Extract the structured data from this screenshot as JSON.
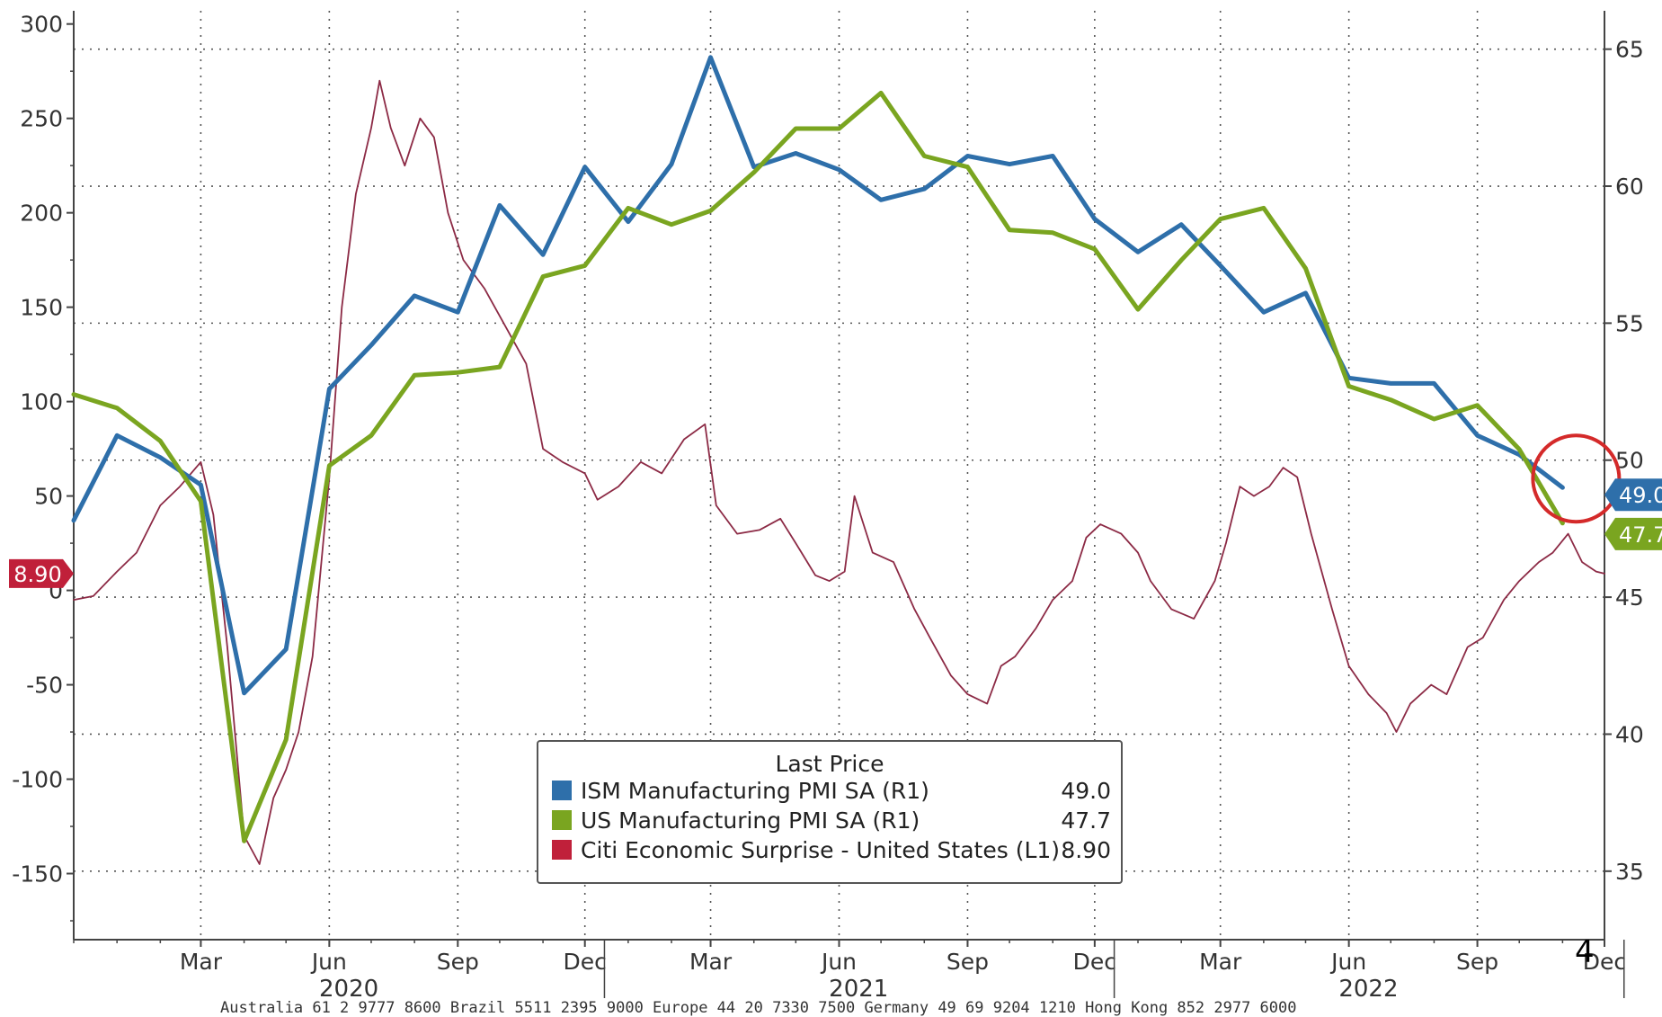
{
  "chart_data": {
    "type": "line",
    "x_range": [
      "2019-12-01",
      "2022-12-01"
    ],
    "left_axis": {
      "ylim": [
        -185,
        307
      ],
      "ticks": [
        300,
        250,
        200,
        150,
        100,
        50,
        0,
        -50,
        -100,
        -150
      ]
    },
    "right_axis": {
      "ylim": [
        32.5,
        66.4
      ],
      "ticks": [
        65,
        60,
        55,
        50,
        45,
        40,
        35
      ]
    },
    "x_month_ticks": [
      {
        "date": "2020-03-01",
        "label": "Mar"
      },
      {
        "date": "2020-06-01",
        "label": "Jun"
      },
      {
        "date": "2020-09-01",
        "label": "Sep"
      },
      {
        "date": "2020-12-01",
        "label": "Dec"
      },
      {
        "date": "2021-03-01",
        "label": "Mar"
      },
      {
        "date": "2021-06-01",
        "label": "Jun"
      },
      {
        "date": "2021-09-01",
        "label": "Sep"
      },
      {
        "date": "2021-12-01",
        "label": "Dec"
      },
      {
        "date": "2022-03-01",
        "label": "Mar"
      },
      {
        "date": "2022-06-01",
        "label": "Jun"
      },
      {
        "date": "2022-09-01",
        "label": "Sep"
      },
      {
        "date": "2022-12-01",
        "label": "Dec"
      }
    ],
    "x_year_labels": [
      {
        "date": "2020-06-15",
        "label": "2020"
      },
      {
        "date": "2021-06-15",
        "label": "2021"
      },
      {
        "date": "2022-06-15",
        "label": "2022"
      }
    ],
    "year_dividers": [
      "2020-12-15",
      "2021-12-15",
      "2022-12-15"
    ],
    "grid": true,
    "series": [
      {
        "name": "ISM Manufacturing PMI SA  (R1)",
        "axis": "right",
        "color": "#2e6faa",
        "last_value": "49.0",
        "points": [
          [
            "2019-12-01",
            47.8
          ],
          [
            "2020-01-01",
            50.9
          ],
          [
            "2020-02-01",
            50.1
          ],
          [
            "2020-03-01",
            49.1
          ],
          [
            "2020-04-01",
            41.5
          ],
          [
            "2020-05-01",
            43.1
          ],
          [
            "2020-06-01",
            52.6
          ],
          [
            "2020-07-01",
            54.2
          ],
          [
            "2020-08-01",
            56.0
          ],
          [
            "2020-09-01",
            55.4
          ],
          [
            "2020-10-01",
            59.3
          ],
          [
            "2020-11-01",
            57.5
          ],
          [
            "2020-12-01",
            60.7
          ],
          [
            "2021-01-01",
            58.7
          ],
          [
            "2021-02-01",
            60.8
          ],
          [
            "2021-03-01",
            64.7
          ],
          [
            "2021-04-01",
            60.7
          ],
          [
            "2021-05-01",
            61.2
          ],
          [
            "2021-06-01",
            60.6
          ],
          [
            "2021-07-01",
            59.5
          ],
          [
            "2021-08-01",
            59.9
          ],
          [
            "2021-09-01",
            61.1
          ],
          [
            "2021-10-01",
            60.8
          ],
          [
            "2021-11-01",
            61.1
          ],
          [
            "2021-12-01",
            58.8
          ],
          [
            "2022-01-01",
            57.6
          ],
          [
            "2022-02-01",
            58.6
          ],
          [
            "2022-03-01",
            57.1
          ],
          [
            "2022-04-01",
            55.4
          ],
          [
            "2022-05-01",
            56.1
          ],
          [
            "2022-06-01",
            53.0
          ],
          [
            "2022-07-01",
            52.8
          ],
          [
            "2022-08-01",
            52.8
          ],
          [
            "2022-09-01",
            50.9
          ],
          [
            "2022-10-01",
            50.2
          ],
          [
            "2022-11-01",
            49.0
          ]
        ]
      },
      {
        "name": "US Manufacturing PMI SA  (R1)",
        "axis": "right",
        "color": "#7aa520",
        "last_value": "47.7",
        "points": [
          [
            "2019-12-01",
            52.4
          ],
          [
            "2020-01-01",
            51.9
          ],
          [
            "2020-02-01",
            50.7
          ],
          [
            "2020-03-01",
            48.5
          ],
          [
            "2020-04-01",
            36.1
          ],
          [
            "2020-05-01",
            39.8
          ],
          [
            "2020-06-01",
            49.8
          ],
          [
            "2020-07-01",
            50.9
          ],
          [
            "2020-08-01",
            53.1
          ],
          [
            "2020-09-01",
            53.2
          ],
          [
            "2020-10-01",
            53.4
          ],
          [
            "2020-11-01",
            56.7
          ],
          [
            "2020-12-01",
            57.1
          ],
          [
            "2021-01-01",
            59.2
          ],
          [
            "2021-02-01",
            58.6
          ],
          [
            "2021-03-01",
            59.1
          ],
          [
            "2021-04-01",
            60.5
          ],
          [
            "2021-05-01",
            62.1
          ],
          [
            "2021-06-01",
            62.1
          ],
          [
            "2021-07-01",
            63.4
          ],
          [
            "2021-08-01",
            61.1
          ],
          [
            "2021-09-01",
            60.7
          ],
          [
            "2021-10-01",
            58.4
          ],
          [
            "2021-11-01",
            58.3
          ],
          [
            "2021-12-01",
            57.7
          ],
          [
            "2022-01-01",
            55.5
          ],
          [
            "2022-02-01",
            57.3
          ],
          [
            "2022-03-01",
            58.8
          ],
          [
            "2022-04-01",
            59.2
          ],
          [
            "2022-05-01",
            57.0
          ],
          [
            "2022-06-01",
            52.7
          ],
          [
            "2022-07-01",
            52.2
          ],
          [
            "2022-08-01",
            51.5
          ],
          [
            "2022-09-01",
            52.0
          ],
          [
            "2022-10-01",
            50.4
          ],
          [
            "2022-11-01",
            47.7
          ]
        ]
      },
      {
        "name": "Citi Economic Surprise - United States  (L1)",
        "axis": "left",
        "color": "#8c2a45",
        "last_value": "8.90",
        "points": [
          [
            "2019-12-01",
            -5
          ],
          [
            "2019-12-15",
            -3
          ],
          [
            "2020-01-01",
            10
          ],
          [
            "2020-01-15",
            20
          ],
          [
            "2020-02-01",
            45
          ],
          [
            "2020-02-15",
            55
          ],
          [
            "2020-03-01",
            68
          ],
          [
            "2020-03-10",
            40
          ],
          [
            "2020-03-20",
            -30
          ],
          [
            "2020-04-01",
            -130
          ],
          [
            "2020-04-12",
            -145
          ],
          [
            "2020-04-22",
            -110
          ],
          [
            "2020-05-01",
            -95
          ],
          [
            "2020-05-10",
            -75
          ],
          [
            "2020-05-20",
            -35
          ],
          [
            "2020-06-01",
            60
          ],
          [
            "2020-06-10",
            150
          ],
          [
            "2020-06-20",
            210
          ],
          [
            "2020-07-01",
            245
          ],
          [
            "2020-07-07",
            270
          ],
          [
            "2020-07-15",
            245
          ],
          [
            "2020-07-25",
            225
          ],
          [
            "2020-08-05",
            250
          ],
          [
            "2020-08-15",
            240
          ],
          [
            "2020-08-25",
            200
          ],
          [
            "2020-09-05",
            175
          ],
          [
            "2020-09-20",
            160
          ],
          [
            "2020-10-05",
            140
          ],
          [
            "2020-10-20",
            120
          ],
          [
            "2020-11-01",
            75
          ],
          [
            "2020-11-15",
            68
          ],
          [
            "2020-12-01",
            62
          ],
          [
            "2020-12-10",
            48
          ],
          [
            "2020-12-25",
            55
          ],
          [
            "2021-01-10",
            68
          ],
          [
            "2021-01-25",
            62
          ],
          [
            "2021-02-10",
            80
          ],
          [
            "2021-02-25",
            88
          ],
          [
            "2021-03-05",
            45
          ],
          [
            "2021-03-20",
            30
          ],
          [
            "2021-04-05",
            32
          ],
          [
            "2021-04-20",
            38
          ],
          [
            "2021-05-01",
            25
          ],
          [
            "2021-05-15",
            8
          ],
          [
            "2021-05-25",
            5
          ],
          [
            "2021-06-05",
            10
          ],
          [
            "2021-06-12",
            50
          ],
          [
            "2021-06-25",
            20
          ],
          [
            "2021-07-10",
            15
          ],
          [
            "2021-07-25",
            -10
          ],
          [
            "2021-08-05",
            -25
          ],
          [
            "2021-08-20",
            -45
          ],
          [
            "2021-09-01",
            -55
          ],
          [
            "2021-09-15",
            -60
          ],
          [
            "2021-09-25",
            -40
          ],
          [
            "2021-10-05",
            -35
          ],
          [
            "2021-10-20",
            -20
          ],
          [
            "2021-11-01",
            -5
          ],
          [
            "2021-11-15",
            5
          ],
          [
            "2021-11-25",
            28
          ],
          [
            "2021-12-05",
            35
          ],
          [
            "2021-12-20",
            30
          ],
          [
            "2022-01-01",
            20
          ],
          [
            "2022-01-10",
            5
          ],
          [
            "2022-01-25",
            -10
          ],
          [
            "2022-02-10",
            -15
          ],
          [
            "2022-02-25",
            5
          ],
          [
            "2022-03-05",
            25
          ],
          [
            "2022-03-15",
            55
          ],
          [
            "2022-03-25",
            50
          ],
          [
            "2022-04-05",
            55
          ],
          [
            "2022-04-15",
            65
          ],
          [
            "2022-04-25",
            60
          ],
          [
            "2022-05-05",
            30
          ],
          [
            "2022-05-20",
            -10
          ],
          [
            "2022-06-01",
            -40
          ],
          [
            "2022-06-15",
            -55
          ],
          [
            "2022-06-28",
            -65
          ],
          [
            "2022-07-05",
            -75
          ],
          [
            "2022-07-15",
            -60
          ],
          [
            "2022-07-30",
            -50
          ],
          [
            "2022-08-10",
            -55
          ],
          [
            "2022-08-25",
            -30
          ],
          [
            "2022-09-05",
            -25
          ],
          [
            "2022-09-20",
            -5
          ],
          [
            "2022-10-01",
            5
          ],
          [
            "2022-10-15",
            15
          ],
          [
            "2022-10-25",
            20
          ],
          [
            "2022-11-05",
            30
          ],
          [
            "2022-11-15",
            15
          ],
          [
            "2022-11-25",
            10
          ],
          [
            "2022-12-01",
            8.9
          ]
        ]
      }
    ],
    "legend": {
      "title": "Last Price",
      "placement": "bottom-center",
      "entries": [
        {
          "label": "ISM Manufacturing PMI SA  (R1)",
          "value": "49.0",
          "color": "#2e6faa"
        },
        {
          "label": "US Manufacturing PMI SA  (R1)",
          "value": "47.7",
          "color": "#7aa520"
        },
        {
          "label": "Citi Economic Surprise - United States  (L1)",
          "value": "8.90",
          "color": "#c0203a"
        }
      ]
    },
    "value_badges": {
      "left": {
        "text": "8.90",
        "color": "#c0203a"
      },
      "right_ism": {
        "text": "49.0",
        "color": "#2e6faa"
      },
      "right_us": {
        "text": "47.7",
        "color": "#7aa520"
      }
    },
    "highlight_circle": {
      "date": "2022-11-01",
      "value": 49.0,
      "color": "#d42a2a"
    },
    "corner_mark": "4",
    "footnote": "Australia 61 2 9777 8600 Brazil 5511 2395 9000 Europe 44 20 7330 7500 Germany 49 69 9204 1210 Hong Kong 852 2977 6000"
  }
}
